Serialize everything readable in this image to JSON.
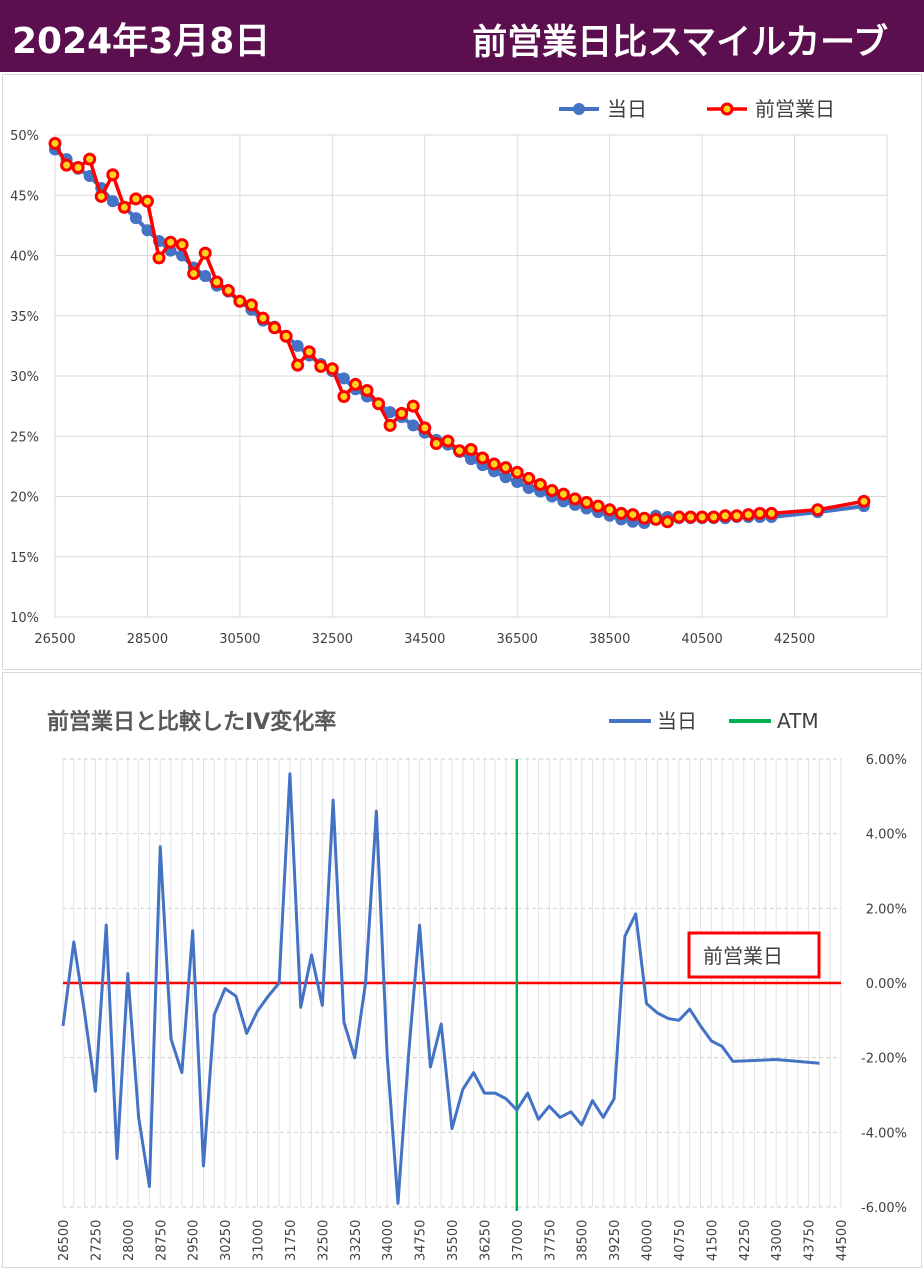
{
  "header": {
    "date": "2024年3月8日",
    "title": "前営業日比スマイルカーブ"
  },
  "colors": {
    "header_bg": "#5c0f4e",
    "today": "#4472c4",
    "prev": "#ff0000",
    "atm": "#00b050",
    "baseline": "#ff0000",
    "grid": "#d9d9d9"
  },
  "chart_data": [
    {
      "type": "line",
      "title": "",
      "ylim": [
        10,
        50
      ],
      "xlim": [
        26500,
        44500
      ],
      "y_tick_labels": [
        "50%",
        "45%",
        "40%",
        "35%",
        "30%",
        "25%",
        "20%",
        "15%",
        "10%"
      ],
      "x_tick_labels": [
        "26500",
        "28500",
        "30500",
        "32500",
        "34500",
        "36500",
        "38500",
        "40500",
        "42500"
      ],
      "legend_position": "top-right",
      "grid": true,
      "series": [
        {
          "name": "当日",
          "x": [
            26500,
            26750,
            27000,
            27250,
            27500,
            27750,
            28000,
            28250,
            28500,
            28750,
            29000,
            29250,
            29500,
            29750,
            30000,
            30250,
            30500,
            30750,
            31000,
            31250,
            31500,
            31750,
            32000,
            32250,
            32500,
            32750,
            33000,
            33250,
            33500,
            33750,
            34000,
            34250,
            34500,
            34750,
            35000,
            35250,
            35500,
            35750,
            36000,
            36250,
            36500,
            36750,
            37000,
            37250,
            37500,
            37750,
            38000,
            38250,
            38500,
            38750,
            39000,
            39250,
            39500,
            39750,
            40000,
            40250,
            40500,
            40750,
            41000,
            41250,
            41500,
            41750,
            42000,
            43000,
            44000
          ],
          "values": [
            48.8,
            48.0,
            47.2,
            46.6,
            45.6,
            44.5,
            44.0,
            43.1,
            42.1,
            41.2,
            40.4,
            40.0,
            39.0,
            38.3,
            37.5,
            37.0,
            36.2,
            35.5,
            34.6,
            34.1,
            33.3,
            32.5,
            31.7,
            31.0,
            30.4,
            29.8,
            28.9,
            28.3,
            27.7,
            27.0,
            26.6,
            25.9,
            25.3,
            24.7,
            24.3,
            23.7,
            23.1,
            22.6,
            22.1,
            21.6,
            21.2,
            20.7,
            20.4,
            20.0,
            19.6,
            19.3,
            19.0,
            18.7,
            18.4,
            18.1,
            17.9,
            17.8,
            18.4,
            18.3,
            18.2,
            18.2,
            18.2,
            18.2,
            18.2,
            18.3,
            18.3,
            18.3,
            18.3,
            18.7,
            19.2
          ]
        },
        {
          "name": "前営業日",
          "x": [
            26500,
            26750,
            27000,
            27250,
            27500,
            27750,
            28000,
            28250,
            28500,
            28750,
            29000,
            29250,
            29500,
            29750,
            30000,
            30250,
            30500,
            30750,
            31000,
            31250,
            31500,
            31750,
            32000,
            32250,
            32500,
            32750,
            33000,
            33250,
            33500,
            33750,
            34000,
            34250,
            34500,
            34750,
            35000,
            35250,
            35500,
            35750,
            36000,
            36250,
            36500,
            36750,
            37000,
            37250,
            37500,
            37750,
            38000,
            38250,
            38500,
            38750,
            39000,
            39250,
            39500,
            39750,
            40000,
            40250,
            40500,
            40750,
            41000,
            41250,
            41500,
            41750,
            42000,
            43000,
            44000
          ],
          "values": [
            49.3,
            47.5,
            47.3,
            48.0,
            44.9,
            46.7,
            44.0,
            44.7,
            44.5,
            39.8,
            41.1,
            40.9,
            38.5,
            40.2,
            37.8,
            37.1,
            36.2,
            35.9,
            34.8,
            34.0,
            33.3,
            30.9,
            32.0,
            30.8,
            30.6,
            28.3,
            29.3,
            28.8,
            27.7,
            25.9,
            26.9,
            27.5,
            25.7,
            24.4,
            24.6,
            23.8,
            23.9,
            23.2,
            22.7,
            22.4,
            22.0,
            21.5,
            21.0,
            20.5,
            20.2,
            19.8,
            19.5,
            19.2,
            18.9,
            18.6,
            18.5,
            18.2,
            18.1,
            17.9,
            18.3,
            18.3,
            18.3,
            18.3,
            18.4,
            18.4,
            18.5,
            18.6,
            18.6,
            18.9,
            19.6
          ]
        }
      ]
    },
    {
      "type": "line",
      "title": "前営業日と比較したIV変化率",
      "ylim": [
        -6,
        6
      ],
      "y_tick_labels": [
        "6.00%",
        "4.00%",
        "2.00%",
        "0.00%",
        "-2.00%",
        "-4.00%",
        "-6.00%"
      ],
      "x_tick_labels": [
        "26500",
        "27250",
        "28000",
        "28750",
        "29500",
        "30250",
        "31000",
        "31750",
        "32500",
        "33250",
        "34000",
        "34750",
        "35500",
        "36250",
        "37000",
        "37750",
        "38500",
        "39250",
        "40000",
        "40750",
        "41500",
        "42250",
        "43000",
        "43750",
        "44500"
      ],
      "atm_strike": 37000,
      "baseline_label": "前営業日",
      "legend_position": "top-right",
      "legend": [
        "当日",
        "ATM"
      ],
      "series": [
        {
          "name": "当日",
          "x": [
            26500,
            26750,
            27000,
            27250,
            27500,
            27750,
            28000,
            28250,
            28500,
            28750,
            29000,
            29250,
            29500,
            29750,
            30000,
            30250,
            30500,
            30750,
            31000,
            31250,
            31500,
            31750,
            32000,
            32250,
            32500,
            32750,
            33000,
            33250,
            33500,
            33750,
            34000,
            34250,
            34500,
            34750,
            35000,
            35250,
            35500,
            35750,
            36000,
            36250,
            36500,
            36750,
            37000,
            37250,
            37500,
            37750,
            38000,
            38250,
            38500,
            38750,
            39000,
            39250,
            39500,
            39750,
            40000,
            40250,
            40500,
            40750,
            41000,
            41250,
            41500,
            41750,
            42000,
            43000,
            44000
          ],
          "values": [
            -1.15,
            1.1,
            -0.8,
            -2.9,
            1.55,
            -4.7,
            0.25,
            -3.6,
            -5.45,
            3.65,
            -1.5,
            -2.4,
            1.4,
            -4.9,
            -0.85,
            -0.15,
            -0.35,
            -1.35,
            -0.75,
            -0.35,
            0.0,
            5.6,
            -0.65,
            0.75,
            -0.6,
            4.9,
            -1.05,
            -2.0,
            0.0,
            4.6,
            -1.95,
            -5.9,
            -1.85,
            1.55,
            -2.25,
            -1.1,
            -3.9,
            -2.85,
            -2.4,
            -2.95,
            -2.95,
            -3.1,
            -3.4,
            -2.95,
            -3.65,
            -3.3,
            -3.6,
            -3.45,
            -3.8,
            -3.15,
            -3.6,
            -3.1,
            1.25,
            1.85,
            -0.55,
            -0.8,
            -0.95,
            -1.0,
            -0.7,
            -1.15,
            -1.55,
            -1.7,
            -2.1,
            -2.05,
            -2.15
          ]
        }
      ]
    }
  ]
}
